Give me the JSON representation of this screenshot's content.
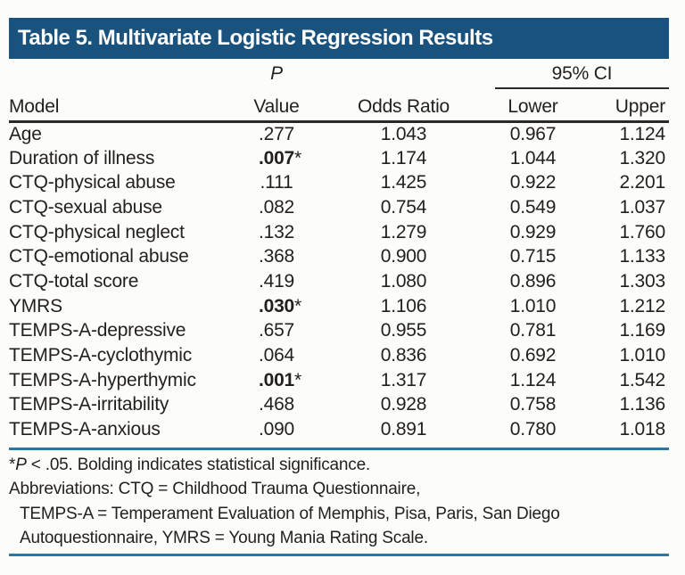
{
  "title": "Table 5. Multivariate Logistic Regression Results",
  "colors": {
    "header_bg": "#1a527e",
    "rule_blue": "#2f75a4",
    "text": "#231f20"
  },
  "table": {
    "p_label": "P",
    "group_header": "95% CI",
    "columns": {
      "model": "Model",
      "value": "Value",
      "odds_ratio": "Odds Ratio",
      "lower": "Lower",
      "upper": "Upper"
    },
    "sig_marker": "*",
    "rows": [
      {
        "model": "Age",
        "p": ".277",
        "sig": false,
        "odds_ratio": "1.043",
        "lower": "0.967",
        "upper": "1.124"
      },
      {
        "model": "Duration of illness",
        "p": ".007",
        "sig": true,
        "odds_ratio": "1.174",
        "lower": "1.044",
        "upper": "1.320"
      },
      {
        "model": "CTQ-physical abuse",
        "p": ".111",
        "sig": false,
        "odds_ratio": "1.425",
        "lower": "0.922",
        "upper": "2.201"
      },
      {
        "model": "CTQ-sexual abuse",
        "p": ".082",
        "sig": false,
        "odds_ratio": "0.754",
        "lower": "0.549",
        "upper": "1.037"
      },
      {
        "model": "CTQ-physical neglect",
        "p": ".132",
        "sig": false,
        "odds_ratio": "1.279",
        "lower": "0.929",
        "upper": "1.760"
      },
      {
        "model": "CTQ-emotional abuse",
        "p": ".368",
        "sig": false,
        "odds_ratio": "0.900",
        "lower": "0.715",
        "upper": "1.133"
      },
      {
        "model": "CTQ-total score",
        "p": ".419",
        "sig": false,
        "odds_ratio": "1.080",
        "lower": "0.896",
        "upper": "1.303"
      },
      {
        "model": "YMRS",
        "p": ".030",
        "sig": true,
        "odds_ratio": "1.106",
        "lower": "1.010",
        "upper": "1.212"
      },
      {
        "model": "TEMPS-A-depressive",
        "p": ".657",
        "sig": false,
        "odds_ratio": "0.955",
        "lower": "0.781",
        "upper": "1.169"
      },
      {
        "model": "TEMPS-A-cyclothymic",
        "p": ".064",
        "sig": false,
        "odds_ratio": "0.836",
        "lower": "0.692",
        "upper": "1.010"
      },
      {
        "model": "TEMPS-A-hyperthymic",
        "p": ".001",
        "sig": true,
        "odds_ratio": "1.317",
        "lower": "1.124",
        "upper": "1.542"
      },
      {
        "model": "TEMPS-A-irritability",
        "p": ".468",
        "sig": false,
        "odds_ratio": "0.928",
        "lower": "0.758",
        "upper": "1.136"
      },
      {
        "model": "TEMPS-A-anxious",
        "p": ".090",
        "sig": false,
        "odds_ratio": "0.891",
        "lower": "0.780",
        "upper": "1.018"
      }
    ]
  },
  "footnotes": {
    "sig_note": {
      "star": "*",
      "p": "P",
      "rest": " < .05. Bolding indicates statistical significance."
    },
    "abbrev_lines": [
      {
        "text": "Abbreviations: CTQ = Childhood Trauma Questionnaire,",
        "indent": false
      },
      {
        "text": "TEMPS-A = Temperament Evaluation of Memphis, Pisa, Paris, San Diego",
        "indent": true
      },
      {
        "text": "Autoquestionnaire, YMRS = Young Mania Rating Scale.",
        "indent": true
      }
    ]
  }
}
